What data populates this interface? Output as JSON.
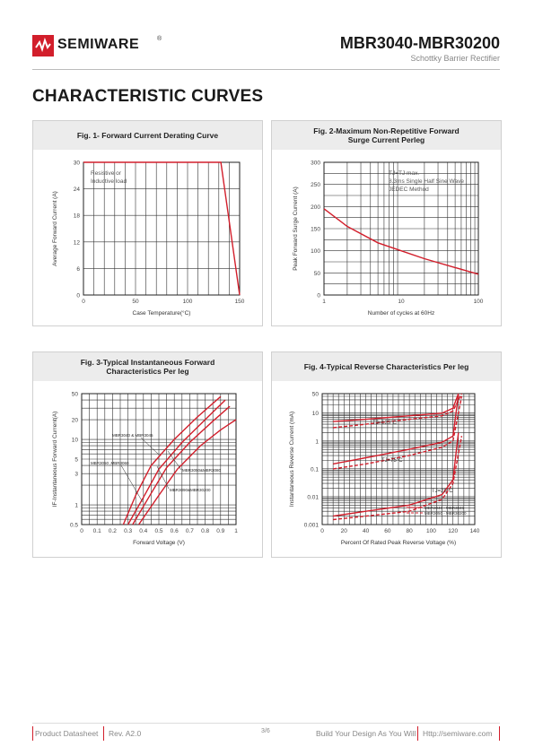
{
  "header": {
    "brand": "SEMIWARE",
    "reg": "®",
    "part_number": "MBR3040-MBR30200",
    "subtitle": "Schottky Barrier Rectifier"
  },
  "section_title": "CHARACTERISTIC CURVES",
  "figures": [
    {
      "title_lines": [
        "Fig. 1- Forward Current Derating Curve"
      ],
      "xlabel": "Case Temperature(°C)",
      "ylabel": "Average Forward Current (A)",
      "annotations": [
        "Resistive or",
        "Inductive load"
      ]
    },
    {
      "title_lines": [
        "Fig. 2-Maximum Non-Repetitive Forward",
        "Surge Current Perleg"
      ],
      "xlabel": "Number of cycles at 60Hz",
      "ylabel": "Peak Forward Surge Current (A)",
      "annotations": [
        "TJ=TJ max.",
        "8.3ms Single Half Sine Wave",
        "JEDEC Method"
      ]
    },
    {
      "title_lines": [
        "Fig. 3-Typical Instantaneous Forward",
        "Characteristics Per leg"
      ],
      "xlabel": "Forward Voltage (V)",
      "ylabel": "IF-Instantaneous Forward Current(A)",
      "annotations": [
        "MBR3040 & MBR3045",
        "MBR3050 ,MBR3060",
        "MBR3050&MBR3080",
        "MBR3090&MBR30200"
      ]
    },
    {
      "title_lines": [
        "Fig. 4-Typical Reverse Characteristics Per leg"
      ],
      "xlabel": "Percent Of Rated Peak Reverse Voltage (%)",
      "ylabel": "Instantaneous Reverse Current (mA)",
      "annotations": [
        "TJ=125°C",
        "TJ=75°C",
        "TJ=25°C"
      ],
      "legend": [
        "MBR3040 - MBR3045",
        "MBR3050 - MBR30200"
      ]
    }
  ],
  "chart_data": [
    {
      "type": "line",
      "title": "Fig. 1- Forward Current Derating Curve",
      "xlabel": "Case Temperature(°C)",
      "ylabel": "Average Forward Current (A)",
      "xlim": [
        0,
        150
      ],
      "ylim": [
        0,
        30
      ],
      "xticks": [
        0,
        50,
        100,
        150
      ],
      "yticks": [
        0,
        6,
        12,
        18,
        24,
        30
      ],
      "grid": true,
      "series": [
        {
          "x": [
            0,
            132,
            150
          ],
          "y": [
            30,
            30,
            0
          ]
        }
      ],
      "color": "#d21e2b"
    },
    {
      "type": "line",
      "title": "Fig. 2-Maximum Non-Repetitive Forward Surge Current Perleg",
      "xlabel": "Number of cycles at 60Hz",
      "ylabel": "Peak Forward Surge Current (A)",
      "xscale": "log",
      "xlim": [
        1,
        100
      ],
      "ylim": [
        0,
        300
      ],
      "xticks": [
        1,
        10,
        100
      ],
      "yticks": [
        0,
        50,
        100,
        150,
        200,
        250,
        300
      ],
      "grid": true,
      "series": [
        {
          "x": [
            1,
            2,
            5,
            10,
            20,
            50,
            100
          ],
          "y": [
            195,
            155,
            118,
            100,
            82,
            62,
            47
          ]
        }
      ],
      "color": "#d21e2b"
    },
    {
      "type": "line",
      "title": "Fig. 3-Typical Instantaneous Forward Characteristics Per leg",
      "xlabel": "Forward Voltage (V)",
      "ylabel": "IF-Instantaneous Forward Current(A)",
      "yscale": "log",
      "xlim": [
        0,
        1.0
      ],
      "ylim": [
        0.5,
        50
      ],
      "xticks": [
        0,
        0.1,
        0.2,
        0.3,
        0.4,
        0.5,
        0.6,
        0.7,
        0.8,
        0.9,
        1.0
      ],
      "yticks": [
        0.5,
        1,
        3,
        5,
        10,
        20,
        50
      ],
      "grid": true,
      "series": [
        {
          "x": [
            0.27,
            0.35,
            0.45,
            0.6,
            0.75,
            0.9
          ],
          "y": [
            0.5,
            1.4,
            4,
            10,
            22,
            45
          ]
        },
        {
          "x": [
            0.3,
            0.4,
            0.5,
            0.65,
            0.8,
            0.93
          ],
          "y": [
            0.5,
            1.3,
            3.5,
            9,
            20,
            40
          ]
        },
        {
          "x": [
            0.33,
            0.45,
            0.55,
            0.7,
            0.85,
            0.96
          ],
          "y": [
            0.5,
            1.5,
            3.7,
            9,
            19,
            32
          ]
        },
        {
          "x": [
            0.37,
            0.5,
            0.62,
            0.77,
            0.9,
            1.0
          ],
          "y": [
            0.5,
            1.4,
            3.5,
            8,
            14,
            20
          ]
        }
      ],
      "color": "#d21e2b"
    },
    {
      "type": "line",
      "title": "Fig. 4-Typical Reverse Characteristics Per leg",
      "xlabel": "Percent Of Rated Peak Reverse Voltage (%)",
      "ylabel": "Instantaneous Reverse Current (mA)",
      "yscale": "log",
      "xlim": [
        0,
        140
      ],
      "ylim": [
        0.001,
        50
      ],
      "xticks": [
        0,
        20,
        40,
        60,
        80,
        100,
        120,
        140
      ],
      "yticks": [
        0.001,
        0.01,
        0.1,
        1,
        10,
        50
      ],
      "grid": true,
      "series": [
        {
          "name": "MBR3040 - MBR3045",
          "x": [
            10,
            40,
            80,
            110,
            120,
            125
          ],
          "y": [
            5,
            6,
            8,
            10,
            15,
            50
          ]
        },
        {
          "name": "MBR3040 - MBR3045",
          "x": [
            10,
            40,
            80,
            110,
            120,
            125
          ],
          "y": [
            0.15,
            0.25,
            0.5,
            0.9,
            1.5,
            45
          ]
        },
        {
          "name": "MBR3040 - MBR3045",
          "x": [
            10,
            40,
            80,
            110,
            120,
            125
          ],
          "y": [
            0.002,
            0.003,
            0.005,
            0.012,
            0.04,
            2
          ]
        },
        {
          "name": "MBR3050 - MBR30200",
          "x": [
            10,
            40,
            80,
            110,
            120,
            128
          ],
          "y": [
            3,
            4,
            6,
            8,
            12,
            50
          ]
        },
        {
          "name": "MBR3050 - MBR30200",
          "x": [
            10,
            40,
            80,
            110,
            120,
            128
          ],
          "y": [
            0.1,
            0.15,
            0.3,
            0.6,
            1.0,
            40
          ]
        },
        {
          "name": "MBR3050 - MBR30200",
          "x": [
            10,
            40,
            80,
            110,
            120,
            128
          ],
          "y": [
            0.0015,
            0.002,
            0.003,
            0.008,
            0.03,
            1.5
          ]
        }
      ],
      "color": "#d21e2b"
    }
  ],
  "footer": {
    "left1": "Product Datasheet",
    "left2": "Rev. A2.0",
    "page": "3/6",
    "right1": "Build Your Design As You Will",
    "right2": "Http://semiware.com"
  }
}
